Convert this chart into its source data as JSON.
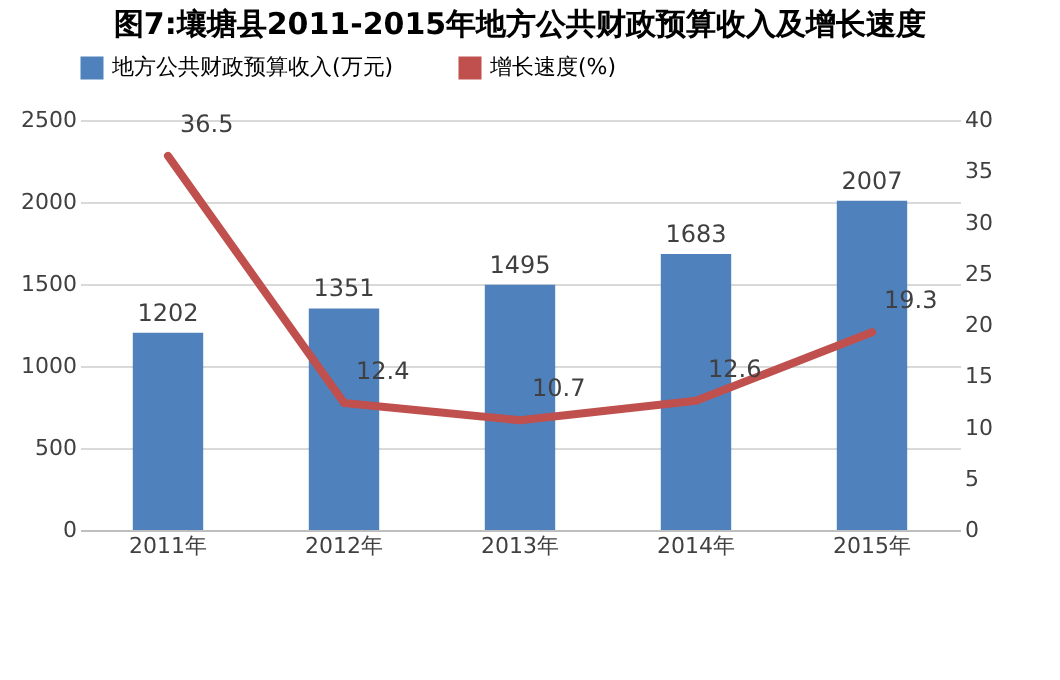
{
  "chart_data": {
    "type": "bar",
    "title": "图7:壤塘县2011-2015年地方公共财政预算收入及增长速度",
    "categories": [
      "2011年",
      "2012年",
      "2013年",
      "2014年",
      "2015年"
    ],
    "series": [
      {
        "name": "地方公共财政预算收入(万元)",
        "color": "#4f81bd",
        "values": [
          1202,
          1351,
          1495,
          1683,
          2007
        ]
      },
      {
        "name": "增长速度(%)",
        "type": "line",
        "axis": "y2",
        "color": "#c0504d",
        "values": [
          36.5,
          12.4,
          10.7,
          12.6,
          19.3
        ]
      }
    ],
    "ylim": [
      0,
      2500
    ],
    "yticks": [
      0,
      500,
      1000,
      1500,
      2000,
      2500
    ],
    "y2lim": [
      0,
      40
    ],
    "y2ticks": [
      0,
      5,
      10,
      15,
      20,
      25,
      30,
      35,
      40
    ],
    "grid": "y",
    "legend": "top",
    "data_labels": true
  }
}
